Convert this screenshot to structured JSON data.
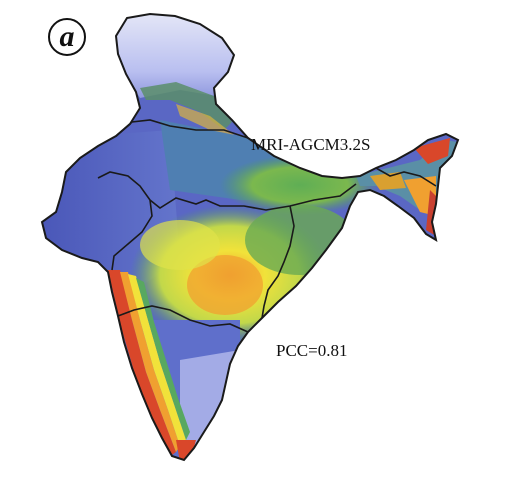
{
  "panel_label": "a",
  "model_label": "MRI-AGCM3.2S",
  "pcc_label": "PCC=0.81",
  "colors": {
    "pale_blue": "#c9cdee",
    "blue": "#5d6cc8",
    "dark_blue": "#3d4aa8",
    "green": "#4e9e5a",
    "yellow_green": "#c2d84a",
    "yellow": "#f1e23a",
    "orange": "#f0a030",
    "red": "#d9472a",
    "boundary": "#1a1a1a"
  }
}
